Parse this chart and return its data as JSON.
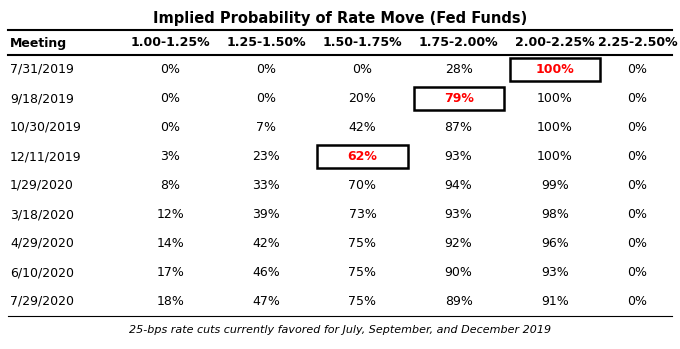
{
  "title": "Implied Probability of Rate Move (Fed Funds)",
  "footnote": "25-bps rate cuts currently favored for July, September, and December 2019",
  "columns": [
    "Meeting",
    "1.00-1.25%",
    "1.25-1.50%",
    "1.50-1.75%",
    "1.75-2.00%",
    "2.00-2.25%",
    "2.25-2.50%"
  ],
  "rows": [
    [
      "7/31/2019",
      "0%",
      "0%",
      "0%",
      "28%",
      "100%",
      "0%"
    ],
    [
      "9/18/2019",
      "0%",
      "0%",
      "20%",
      "79%",
      "100%",
      "0%"
    ],
    [
      "10/30/2019",
      "0%",
      "7%",
      "42%",
      "87%",
      "100%",
      "0%"
    ],
    [
      "12/11/2019",
      "3%",
      "23%",
      "62%",
      "93%",
      "100%",
      "0%"
    ],
    [
      "1/29/2020",
      "8%",
      "33%",
      "70%",
      "94%",
      "99%",
      "0%"
    ],
    [
      "3/18/2020",
      "12%",
      "39%",
      "73%",
      "93%",
      "98%",
      "0%"
    ],
    [
      "4/29/2020",
      "14%",
      "42%",
      "75%",
      "92%",
      "96%",
      "0%"
    ],
    [
      "6/10/2020",
      "17%",
      "46%",
      "75%",
      "90%",
      "93%",
      "0%"
    ],
    [
      "7/29/2020",
      "18%",
      "47%",
      "75%",
      "89%",
      "91%",
      "0%"
    ]
  ],
  "highlighted_cells": [
    {
      "row": 0,
      "col": 5,
      "color": "red",
      "box": true
    },
    {
      "row": 1,
      "col": 4,
      "color": "red",
      "box": true
    },
    {
      "row": 3,
      "col": 3,
      "color": "red",
      "box": true
    }
  ],
  "title_fontsize": 10.5,
  "header_fontsize": 9,
  "cell_fontsize": 9,
  "footnote_fontsize": 8
}
